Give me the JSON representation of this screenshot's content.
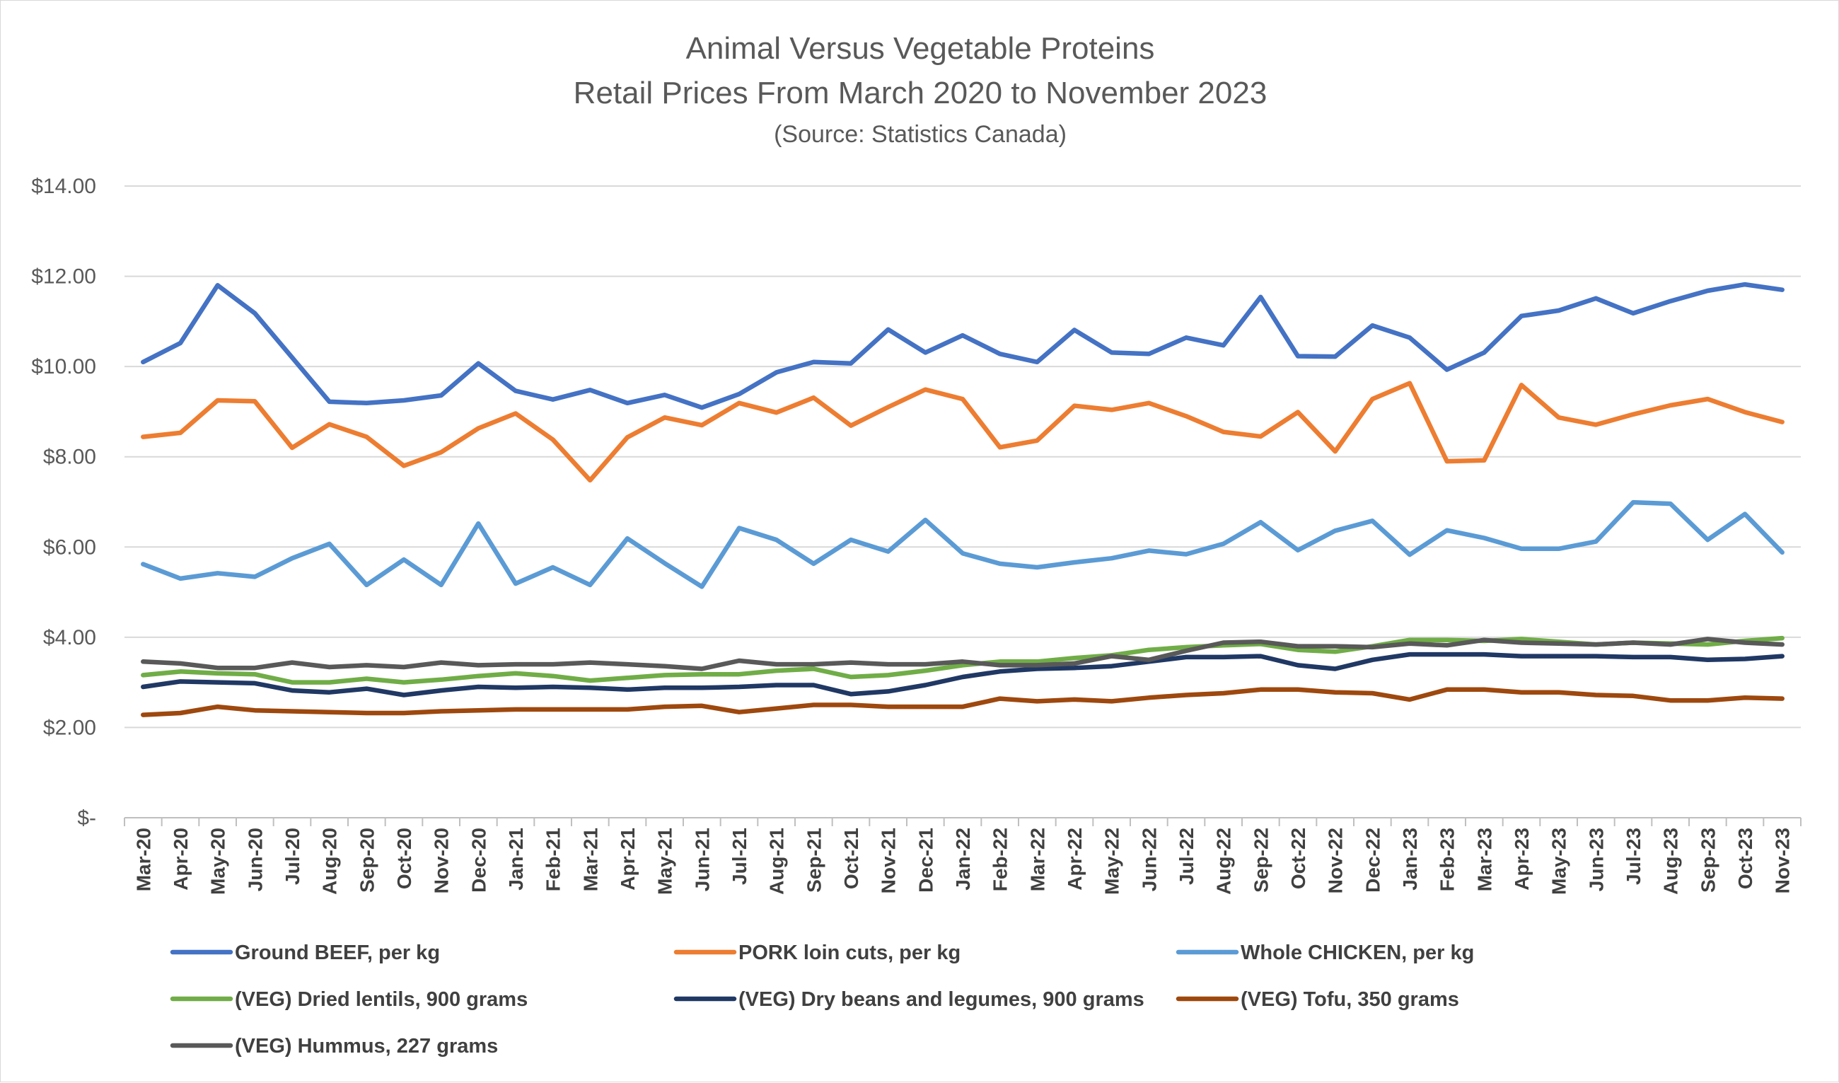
{
  "chart_data": {
    "type": "line",
    "title": "Animal Versus Vegetable Proteins",
    "subtitle": "Retail Prices From March 2020 to November 2023",
    "source": "(Source: Statistics Canada)",
    "xlabel": "",
    "ylabel": "",
    "ylim": [
      0,
      14
    ],
    "y_ticks": [
      0,
      2,
      4,
      6,
      8,
      10,
      12,
      14
    ],
    "y_tick_labels": [
      "$-",
      "$2.00",
      "$4.00",
      "$6.00",
      "$8.00",
      "$10.00",
      "$12.00",
      "$14.00"
    ],
    "grid": "horizontal",
    "legend_position": "bottom",
    "categories": [
      "Mar-20",
      "Apr-20",
      "May-20",
      "Jun-20",
      "Jul-20",
      "Aug-20",
      "Sep-20",
      "Oct-20",
      "Nov-20",
      "Dec-20",
      "Jan-21",
      "Feb-21",
      "Mar-21",
      "Apr-21",
      "May-21",
      "Jun-21",
      "Jul-21",
      "Aug-21",
      "Sep-21",
      "Oct-21",
      "Nov-21",
      "Dec-21",
      "Jan-22",
      "Feb-22",
      "Mar-22",
      "Apr-22",
      "May-22",
      "Jun-22",
      "Jul-22",
      "Aug-22",
      "Sep-22",
      "Oct-22",
      "Nov-22",
      "Dec-22",
      "Jan-23",
      "Feb-23",
      "Mar-23",
      "Apr-23",
      "May-23",
      "Jun-23",
      "Jul-23",
      "Aug-23",
      "Sep-23",
      "Oct-23",
      "Nov-23"
    ],
    "series": [
      {
        "name": "Ground BEEF, per kg",
        "color": "#4472c4",
        "values": [
          10.1,
          10.52,
          11.8,
          11.18,
          10.2,
          9.22,
          9.19,
          9.25,
          9.36,
          10.07,
          9.46,
          9.27,
          9.48,
          9.19,
          9.37,
          9.09,
          9.39,
          9.87,
          10.1,
          10.07,
          10.82,
          10.31,
          10.69,
          10.28,
          10.1,
          10.81,
          10.31,
          10.28,
          10.64,
          10.47,
          11.54,
          10.23,
          10.22,
          10.91,
          10.64,
          9.93,
          10.31,
          11.12,
          11.24,
          11.51,
          11.18,
          11.45,
          11.68,
          11.82,
          11.7
        ]
      },
      {
        "name": "PORK loin cuts, per kg",
        "color": "#ed7d31",
        "values": [
          8.44,
          8.53,
          9.25,
          9.23,
          8.2,
          8.72,
          8.44,
          7.8,
          8.1,
          8.63,
          8.96,
          8.38,
          7.48,
          8.43,
          8.87,
          8.7,
          9.19,
          8.98,
          9.31,
          8.69,
          9.1,
          9.49,
          9.28,
          8.21,
          8.36,
          9.13,
          9.04,
          9.19,
          8.9,
          8.55,
          8.45,
          8.99,
          8.12,
          9.28,
          9.63,
          7.9,
          7.92,
          9.59,
          8.87,
          8.71,
          8.94,
          9.14,
          9.28,
          8.99,
          8.77
        ]
      },
      {
        "name": "Whole CHICKEN, per kg",
        "color": "#5b9bd5",
        "values": [
          5.62,
          5.3,
          5.42,
          5.34,
          5.75,
          6.07,
          5.16,
          5.72,
          5.16,
          6.52,
          5.19,
          5.55,
          5.16,
          6.19,
          5.64,
          5.12,
          6.42,
          6.16,
          5.63,
          6.16,
          5.9,
          6.6,
          5.86,
          5.63,
          5.55,
          5.66,
          5.75,
          5.92,
          5.84,
          6.07,
          6.55,
          5.93,
          6.36,
          6.58,
          5.83,
          6.37,
          6.2,
          5.96,
          5.96,
          6.12,
          6.99,
          6.96,
          6.16,
          6.73,
          5.88
        ]
      },
      {
        "name": "(VEG) Dried lentils, 900 grams",
        "color": "#70ad47",
        "values": [
          3.16,
          3.24,
          3.2,
          3.18,
          3.0,
          3.0,
          3.08,
          3.0,
          3.06,
          3.14,
          3.2,
          3.14,
          3.04,
          3.1,
          3.16,
          3.18,
          3.18,
          3.26,
          3.3,
          3.12,
          3.16,
          3.26,
          3.38,
          3.46,
          3.46,
          3.54,
          3.6,
          3.72,
          3.78,
          3.82,
          3.85,
          3.72,
          3.68,
          3.8,
          3.94,
          3.94,
          3.92,
          3.96,
          3.9,
          3.84,
          3.88,
          3.86,
          3.84,
          3.92,
          3.98
        ]
      },
      {
        "name": "(VEG) Dry beans and legumes, 900 grams",
        "color": "#203864",
        "values": [
          2.9,
          3.02,
          3.0,
          2.98,
          2.82,
          2.78,
          2.86,
          2.72,
          2.82,
          2.9,
          2.88,
          2.9,
          2.88,
          2.84,
          2.88,
          2.88,
          2.9,
          2.94,
          2.94,
          2.74,
          2.8,
          2.94,
          3.12,
          3.24,
          3.3,
          3.32,
          3.36,
          3.46,
          3.56,
          3.56,
          3.58,
          3.38,
          3.3,
          3.5,
          3.62,
          3.62,
          3.62,
          3.58,
          3.58,
          3.58,
          3.56,
          3.56,
          3.5,
          3.52,
          3.58
        ]
      },
      {
        "name": "(VEG) Tofu, 350 grams",
        "color": "#9e480e",
        "values": [
          2.28,
          2.32,
          2.46,
          2.38,
          2.36,
          2.34,
          2.32,
          2.32,
          2.36,
          2.38,
          2.4,
          2.4,
          2.4,
          2.4,
          2.46,
          2.48,
          2.34,
          2.42,
          2.5,
          2.5,
          2.46,
          2.46,
          2.46,
          2.64,
          2.58,
          2.62,
          2.58,
          2.66,
          2.72,
          2.76,
          2.84,
          2.84,
          2.78,
          2.76,
          2.62,
          2.84,
          2.84,
          2.78,
          2.78,
          2.72,
          2.7,
          2.6,
          2.6,
          2.66,
          2.64
        ]
      },
      {
        "name": "(VEG) Hummus, 227 grams",
        "color": "#595959",
        "values": [
          3.46,
          3.42,
          3.32,
          3.32,
          3.44,
          3.34,
          3.38,
          3.34,
          3.44,
          3.38,
          3.4,
          3.4,
          3.44,
          3.4,
          3.36,
          3.3,
          3.48,
          3.4,
          3.4,
          3.44,
          3.4,
          3.4,
          3.46,
          3.38,
          3.38,
          3.42,
          3.58,
          3.5,
          3.7,
          3.88,
          3.9,
          3.8,
          3.8,
          3.78,
          3.86,
          3.82,
          3.94,
          3.88,
          3.86,
          3.84,
          3.88,
          3.84,
          3.96,
          3.88,
          3.84
        ]
      }
    ]
  }
}
